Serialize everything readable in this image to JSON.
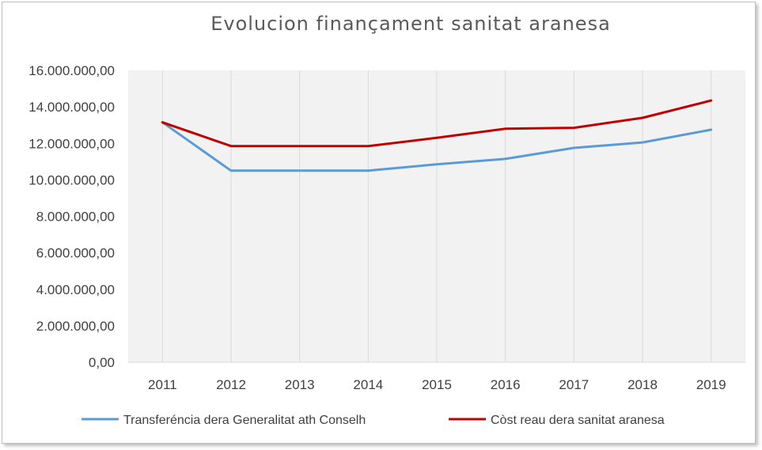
{
  "chart_data": {
    "type": "line",
    "title": "Evolucion finançament sanitat aranesa",
    "xlabel": "",
    "ylabel": "",
    "x": [
      "2011",
      "2012",
      "2013",
      "2014",
      "2015",
      "2016",
      "2017",
      "2018",
      "2019"
    ],
    "ylim": [
      0,
      16000000
    ],
    "yticks": [
      "0,00",
      "2.000.000,00",
      "4.000.000,00",
      "6.000.000,00",
      "8.000.000,00",
      "10.000.000,00",
      "12.000.000,00",
      "14.000.000,00",
      "16.000.000,00"
    ],
    "grid": "vertical",
    "legend_position": "bottom",
    "series": [
      {
        "name": "Transferéncia dera Generalitat ath Conselh",
        "color": "#5b9bd5",
        "values": [
          13150000,
          10500000,
          10500000,
          10500000,
          10850000,
          11150000,
          11750000,
          12050000,
          12750000
        ]
      },
      {
        "name": "Còst reau dera sanitat aranesa",
        "color": "#c00000",
        "values": [
          13150000,
          11850000,
          11850000,
          11850000,
          12300000,
          12800000,
          12850000,
          13400000,
          14350000
        ]
      }
    ]
  }
}
